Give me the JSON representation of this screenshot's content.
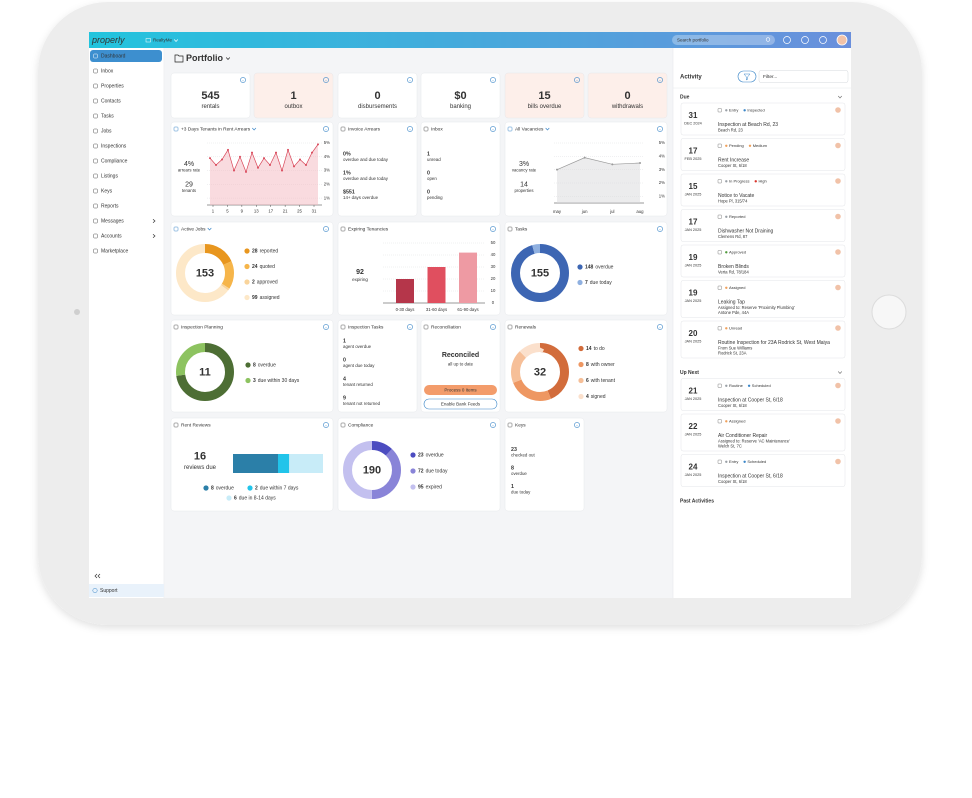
{
  "topbar": {
    "logo": "properly",
    "workspace": "RealtyMe",
    "search": "Search portfolio"
  },
  "sidebar": {
    "items": [
      "Dashboard",
      "Inbox",
      "Properties",
      "Contacts",
      "Tasks",
      "Jobs",
      "Inspections",
      "Compliance",
      "Listings",
      "Keys",
      "Reports",
      "Messages",
      "Accounts",
      "Marketplace"
    ],
    "support": "Support"
  },
  "header": {
    "title": "Portfolio",
    "edit_button": "Edit Dashboard",
    "user": "Deborah Lang"
  },
  "stats": [
    {
      "value": 545,
      "label": "rentals"
    },
    {
      "value": 1,
      "label": "outbox",
      "highlight": true
    },
    {
      "value": 0,
      "label": "disbursements"
    },
    {
      "value": "$0",
      "label": "banking"
    },
    {
      "value": 15,
      "label": "bills overdue",
      "highlight": true
    },
    {
      "value": 0,
      "label": "withdrawals",
      "highlight": true
    }
  ],
  "arrears": {
    "title": "+3 Days Tenants in Rent Arrears",
    "dropdown": true,
    "rate": "4%",
    "rate_label": "arrears rate",
    "tenants": 29,
    "tenants_label": "tenants",
    "values": [
      3.9,
      3.4,
      3.8,
      4.5,
      3.0,
      4.0,
      2.9,
      4.3,
      3.2,
      3.9,
      3.4,
      4.3,
      3.0,
      4.5,
      3.3,
      3.8,
      3.4,
      4.3,
      4.9
    ],
    "xticks": [
      1,
      5,
      9,
      13,
      17,
      21,
      25,
      31
    ],
    "ylim": [
      0.5,
      5
    ],
    "yticks": [
      {
        "value": 5,
        "label": "5%"
      },
      {
        "value": 4,
        "label": "4%"
      },
      {
        "value": 3,
        "label": "3%"
      },
      {
        "value": 2,
        "label": "2%"
      },
      {
        "value": 1,
        "label": "1%"
      }
    ],
    "color": "#d9485a"
  },
  "invoice": {
    "title": "Invoice Arrears",
    "rows": [
      {
        "value": "0%",
        "label": "overdue and due today"
      },
      {
        "value": "1%",
        "label": "overdue and due today"
      },
      {
        "value": "$551",
        "label": "14+ days overdue",
        "color": "#d9342b"
      }
    ]
  },
  "inbox": {
    "title": "Inbox",
    "rows": [
      {
        "value": 1,
        "label": "unread"
      },
      {
        "value": 0,
        "label": "open",
        "color": "#3a86c8"
      },
      {
        "value": 0,
        "label": "pending",
        "color": "#f0a05a"
      }
    ]
  },
  "vacancies": {
    "title": "All Vacancies",
    "dropdown": true,
    "rate": "3%",
    "rate_label": "vacancy rate",
    "properties": 14,
    "properties_label": "properties",
    "categories": [
      "may",
      "jun",
      "jul",
      "aug"
    ],
    "values": [
      3.0,
      3.9,
      3.4,
      3.5
    ],
    "ylim": [
      0.5,
      5
    ],
    "yticks": [
      {
        "value": 5,
        "label": "5%"
      },
      {
        "value": 4,
        "label": "4%"
      },
      {
        "value": 3,
        "label": "3%"
      },
      {
        "value": 2,
        "label": "2%"
      },
      {
        "value": 1,
        "label": "1%"
      }
    ],
    "color": "#9a9a9a"
  },
  "active_jobs": {
    "title": "Active Jobs",
    "dropdown": true,
    "total": 153,
    "items": [
      {
        "value": 28,
        "label": "reported",
        "color": "#e8961e"
      },
      {
        "value": 24,
        "label": "quoted",
        "color": "#f6b54a"
      },
      {
        "value": 2,
        "label": "approved",
        "color": "#f9d49b"
      },
      {
        "value": 99,
        "label": "assigned",
        "color": "#fde8c8"
      }
    ]
  },
  "expiring": {
    "title": "Expiring Tenancies",
    "total": 92,
    "total_label": "expiring",
    "categories": [
      "0-30 days",
      "31-60 days",
      "61-90 days"
    ],
    "values": [
      20,
      30,
      42
    ],
    "colors": [
      "#b5364a",
      "#e04f5f",
      "#ee9aa3"
    ],
    "ylim": [
      0,
      50
    ],
    "yticks": [
      0,
      10,
      20,
      30,
      40,
      50
    ]
  },
  "tasks": {
    "title": "Tasks",
    "total": 155,
    "items": [
      {
        "value": 148,
        "label": "overdue",
        "color": "#3d66b3"
      },
      {
        "value": 7,
        "label": "due today",
        "color": "#8fb0e0"
      }
    ]
  },
  "inspection_planning": {
    "title": "Inspection Planning",
    "total": 11,
    "items": [
      {
        "value": 8,
        "label": "overdue",
        "color": "#4d6e34"
      },
      {
        "value": 3,
        "label": "due within 30 days",
        "color": "#8dc360"
      }
    ]
  },
  "inspection_tasks": {
    "title": "Inspection Tasks",
    "rows": [
      {
        "value": 1,
        "label": "agent overdue",
        "color": "#d9342b"
      },
      {
        "value": 0,
        "label": "agent due today"
      },
      {
        "value": 4,
        "label": "tenant returned",
        "color": "#4f9a3a"
      },
      {
        "value": 9,
        "label": "tenant not returned",
        "color": "#d9342b"
      }
    ]
  },
  "reconciliation": {
    "title": "Reconciliation",
    "status": "Reconciled",
    "note": "all up to date",
    "process_button": "Process 0 Items",
    "feeds_button": "Enable Bank Feeds"
  },
  "renewals": {
    "title": "Renewals",
    "total": 32,
    "items": [
      {
        "value": 14,
        "label": "to do",
        "color": "#d26c3b"
      },
      {
        "value": 8,
        "label": "with owner",
        "color": "#ee9762"
      },
      {
        "value": 6,
        "label": "with tenant",
        "color": "#f6bf98"
      },
      {
        "value": 4,
        "label": "signed",
        "color": "#fbe0cc"
      }
    ]
  },
  "rent_reviews": {
    "title": "Rent Reviews",
    "total": 16,
    "total_label": "reviews due",
    "items": [
      {
        "value": 8,
        "label": "overdue",
        "color": "#2b7fa8"
      },
      {
        "value": 2,
        "label": "due within 7 days",
        "color": "#21c4ea"
      },
      {
        "value": 6,
        "label": "due in 8-14 days",
        "color": "#c8ecf8"
      }
    ]
  },
  "compliance": {
    "title": "Compliance",
    "total": 190,
    "items": [
      {
        "value": 23,
        "label": "overdue",
        "color": "#4c4cc0"
      },
      {
        "value": 72,
        "label": "due today",
        "color": "#8984d8"
      },
      {
        "value": 95,
        "label": "expired",
        "color": "#c3c0ef"
      }
    ]
  },
  "keys": {
    "title": "Keys",
    "rows": [
      {
        "value": 23,
        "label": "checked out"
      },
      {
        "value": 8,
        "label": "overdue",
        "color": "#d9342b"
      },
      {
        "value": 1,
        "label": "due today"
      }
    ]
  },
  "activity": {
    "title": "Activity",
    "filter": "Filter...",
    "sections": [
      {
        "title": "Due",
        "items": [
          {
            "day": 31,
            "month": "DEC 2024",
            "color": "#d9342b",
            "tags": [
              {
                "text": "Entry",
                "color": "#9aa0a6"
              },
              {
                "text": "Inspected",
                "color": "#3a86c8"
              }
            ],
            "title": "Inspection at Beach Rd, 23",
            "lines": [
              "Beach Rd, 23"
            ]
          },
          {
            "day": 17,
            "month": "FEB 2025",
            "color": "#d9342b",
            "tags": [
              {
                "text": "Pending",
                "color": "#f0a05a"
              },
              {
                "text": "Medium",
                "color": "#f0a05a"
              }
            ],
            "title": "Rent Increase",
            "lines": [
              "Cooper St, 6/18"
            ]
          },
          {
            "day": 15,
            "month": "JAN 2025",
            "color": "#d9342b",
            "tags": [
              {
                "text": "In Progress",
                "color": "#9aa0a6"
              },
              {
                "text": "High",
                "color": "#d9342b"
              }
            ],
            "title": "Notice to Vacate",
            "lines": [
              "Hope Pl, 315/74"
            ]
          },
          {
            "day": 17,
            "month": "JAN 2025",
            "color": "#e8824a",
            "tags": [
              {
                "text": "Reported",
                "color": "#9aa0a6"
              }
            ],
            "title": "Dishwasher Not Draining",
            "lines": [
              "Clemens Rd, 87"
            ]
          },
          {
            "day": 19,
            "month": "JAN 2025",
            "color": "#e8824a",
            "tags": [
              {
                "text": "Approved",
                "color": "#4f9a3a"
              }
            ],
            "title": "Broken Blinds",
            "lines": [
              "Verta Rd, 78/184"
            ]
          },
          {
            "day": 19,
            "month": "JAN 2025",
            "color": "#e8824a",
            "tags": [
              {
                "text": "Assigned",
                "color": "#f0a05a"
              }
            ],
            "title": "Leaking Tap",
            "lines": [
              "Assigned to: Reserve 'Proximity Plumbing'",
              "Antone Pde, 44A"
            ]
          },
          {
            "day": 20,
            "month": "JAN 2025",
            "color": "#333333",
            "tags": [
              {
                "text": "Unread",
                "color": "#f0a05a"
              }
            ],
            "title": "Routine Inspection for 23A Rodrick St, West Maiya",
            "lines": [
              "From Sue Williams",
              "Rodrick St, 23A"
            ]
          }
        ]
      },
      {
        "title": "Up Next",
        "items": [
          {
            "day": 21,
            "month": "JAN 2025",
            "color": "#333333",
            "tags": [
              {
                "text": "Routine",
                "color": "#9aa0a6"
              },
              {
                "text": "Scheduled",
                "color": "#3a86c8"
              }
            ],
            "title": "Inspection at Cooper St, 6/18",
            "lines": [
              "Cooper St, 6/18"
            ]
          },
          {
            "day": 22,
            "month": "JAN 2025",
            "color": "#333333",
            "tags": [
              {
                "text": "Assigned",
                "color": "#f0a05a"
              }
            ],
            "title": "Air Conditioner Repair",
            "lines": [
              "Assigned to: Reserve 'AC Maintenance'",
              "Welch St, 7C"
            ]
          },
          {
            "day": 24,
            "month": "JAN 2025",
            "color": "#333333",
            "tags": [
              {
                "text": "Entry",
                "color": "#9aa0a6"
              },
              {
                "text": "Scheduled",
                "color": "#3a86c8"
              }
            ],
            "title": "Inspection at Cooper St, 6/18",
            "lines": [
              "Cooper St, 6/18"
            ]
          }
        ]
      },
      {
        "title": "Past Activities",
        "items": []
      }
    ]
  }
}
